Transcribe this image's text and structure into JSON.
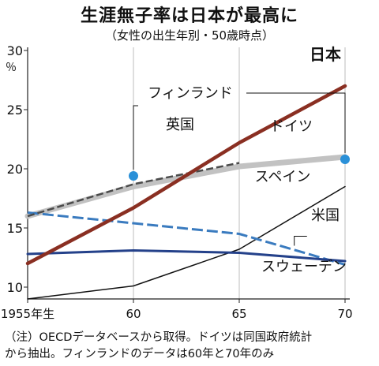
{
  "chart_data": {
    "type": "line",
    "title": "生涯無子率は日本が最高に",
    "subtitle": "（女性の出生年別・50歳時点）",
    "unit": "％",
    "x": [
      1955,
      1960,
      1965,
      1970
    ],
    "x_tick_labels": [
      "1955年生",
      "60",
      "65",
      "70"
    ],
    "xlim": [
      1955,
      1970
    ],
    "ylim": [
      9,
      30
    ],
    "y_ticks": [
      10,
      15,
      20,
      25,
      30
    ],
    "grid": "vertical",
    "series": [
      {
        "name": "日本",
        "color": "#8a2f22",
        "style": "solid",
        "width": 4.5,
        "points": [
          [
            1955,
            12.0
          ],
          [
            1960,
            16.7
          ],
          [
            1965,
            22.2
          ],
          [
            1970,
            27.0
          ]
        ]
      },
      {
        "name": "ドイツ",
        "color": "#c2c2c2",
        "style": "solid",
        "width": 7,
        "points": [
          [
            1955,
            16.0
          ],
          [
            1960,
            18.5
          ],
          [
            1965,
            20.2
          ],
          [
            1970,
            21.0
          ]
        ]
      },
      {
        "name": "英国",
        "color": "#4a4a4a",
        "style": "dashed",
        "width": 2.5,
        "points": [
          [
            1955,
            16.0
          ],
          [
            1960,
            18.7
          ],
          [
            1965,
            20.5
          ]
        ]
      },
      {
        "name": "スペイン",
        "color": "#111111",
        "style": "solid",
        "width": 1.5,
        "points": [
          [
            1955,
            9.0
          ],
          [
            1960,
            10.1
          ],
          [
            1965,
            13.2
          ],
          [
            1970,
            18.5
          ]
        ]
      },
      {
        "name": "米国",
        "color": "#3a7bbf",
        "style": "dashed",
        "width": 3,
        "points": [
          [
            1955,
            16.3
          ],
          [
            1960,
            15.4
          ],
          [
            1965,
            14.5
          ],
          [
            1970,
            11.9
          ]
        ]
      },
      {
        "name": "スウェーデン",
        "color": "#24418a",
        "style": "solid",
        "width": 3,
        "points": [
          [
            1955,
            12.8
          ],
          [
            1960,
            13.1
          ],
          [
            1965,
            12.9
          ],
          [
            1970,
            12.2
          ]
        ]
      }
    ],
    "points_only": [
      {
        "name": "フィンランド",
        "color": "#2a90d8",
        "points": [
          [
            1960,
            19.4
          ],
          [
            1970,
            20.8
          ]
        ]
      }
    ],
    "note": [
      "（注）OECDデータベースから取得。ドイツは同国政府統計",
      "から抽出。フィンランドのデータは60年と70年のみ"
    ]
  }
}
